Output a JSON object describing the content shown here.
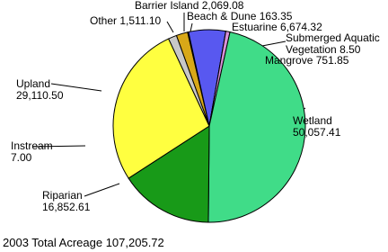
{
  "chart_data": {
    "type": "pie",
    "categories": [
      "Barrier Island",
      "Beach & Dune",
      "Estuarine",
      "Submerged Aquatic Vegetation",
      "Mangrove",
      "Wetland",
      "Riparian",
      "Instream",
      "Upland",
      "Other"
    ],
    "values": [
      2069.08,
      163.35,
      6674.32,
      8.5,
      751.85,
      50057.41,
      16852.61,
      7,
      29110.5,
      1511.1
    ],
    "value_labels": [
      "2,069.08",
      "163.35",
      "6,674.32",
      "8.50",
      "751.85",
      "50,057.41",
      "16,852.61",
      "7.00",
      "29,110.50",
      "1,511.10"
    ],
    "colors": [
      "#d8a818",
      "#e8d898",
      "#5858f0",
      "#a8a8ff",
      "#d890d8",
      "#40dc88",
      "#189a18",
      "#8888a8",
      "#ffff40",
      "#c8c8c8"
    ],
    "footer": {
      "text": "2003 Total Acreage",
      "value": 107205.72,
      "value_label": "107,205.72"
    }
  }
}
